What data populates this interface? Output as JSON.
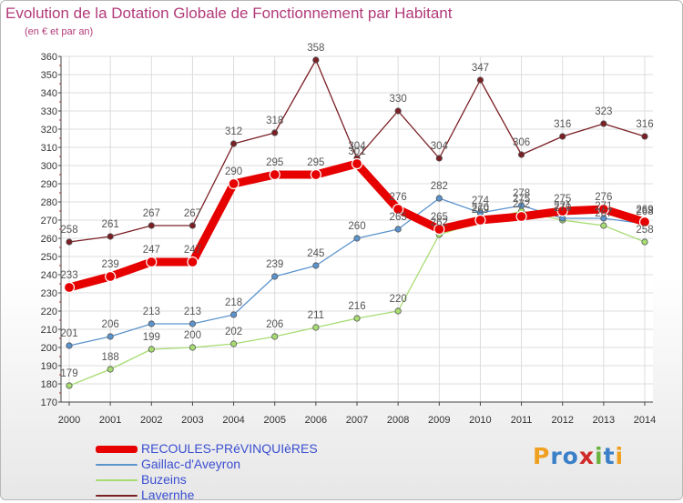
{
  "header": {
    "title": "Evolution de la Dotation Globale de Fonctionnement par Habitant",
    "subtitle": "(en € et par an)"
  },
  "logo": {
    "text": "Proxiti"
  },
  "chart_data": {
    "type": "line",
    "x": [
      2000,
      2001,
      2002,
      2003,
      2004,
      2005,
      2006,
      2007,
      2008,
      2009,
      2010,
      2011,
      2012,
      2013,
      2014
    ],
    "ylim": [
      170,
      360
    ],
    "yticks": [
      170,
      180,
      190,
      200,
      210,
      220,
      230,
      240,
      250,
      260,
      270,
      280,
      290,
      300,
      310,
      320,
      330,
      340,
      350,
      360
    ],
    "grid": true,
    "legend_position": "bottom-left",
    "series": [
      {
        "name": "RECOULES-PRéVINQUIèRES",
        "color": "#e60000",
        "emphasis": true,
        "values": [
          233,
          239,
          247,
          247,
          290,
          295,
          295,
          301,
          276,
          265,
          270,
          272,
          275,
          276,
          269
        ],
        "labels": [
          "233",
          "239",
          "247",
          "247",
          "290",
          "295",
          "295",
          "301",
          "276",
          "265",
          "270",
          "272",
          "275",
          "276",
          "269"
        ]
      },
      {
        "name": "Gaillac-d'Aveyron",
        "color": "#5b93cd",
        "values": [
          201,
          206,
          213,
          213,
          218,
          239,
          245,
          260,
          265,
          282,
          274,
          278,
          271,
          271,
          268
        ],
        "labels": [
          "201",
          "206",
          "213",
          "213",
          "218",
          "239",
          "245",
          "260",
          "265",
          "282",
          "274",
          "278",
          "271",
          "271",
          "268"
        ]
      },
      {
        "name": "Buzeins",
        "color": "#a6dc72",
        "values": [
          179,
          188,
          199,
          200,
          202,
          206,
          211,
          216,
          220,
          262,
          269,
          275,
          270,
          267,
          258
        ],
        "labels": [
          "179",
          "188",
          "199",
          "200",
          "202",
          "206",
          "211",
          "216",
          "220",
          "262",
          "269",
          "275",
          "270",
          "267",
          "258"
        ]
      },
      {
        "name": "Lavernhe",
        "color": "#7a1f24",
        "values": [
          258,
          261,
          267,
          267,
          312,
          318,
          358,
          304,
          330,
          304,
          347,
          306,
          316,
          323,
          316
        ],
        "labels": [
          "258",
          "261",
          "267",
          "267",
          "312",
          "318",
          "358",
          "304",
          "330",
          "304",
          "347",
          "306",
          "316",
          "323",
          "316"
        ]
      }
    ]
  }
}
